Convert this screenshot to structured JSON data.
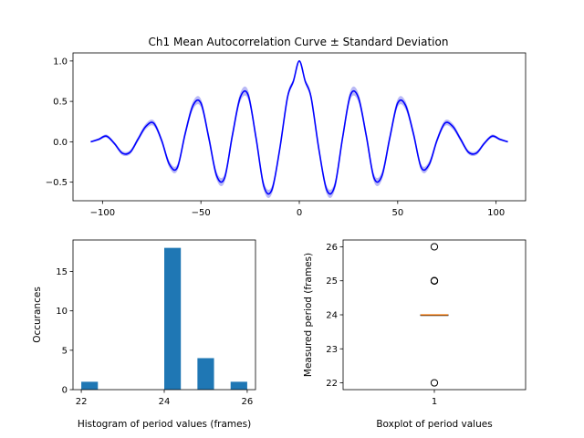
{
  "chart_data": [
    {
      "type": "line",
      "title": "Ch1 Mean Autocorrelation Curve ± Standard Deviation",
      "xlabel": "",
      "ylabel": "",
      "xlim": [
        -115,
        115
      ],
      "ylim": [
        -0.73,
        1.1
      ],
      "xticks": [
        -100,
        -50,
        0,
        50,
        100
      ],
      "yticks": [
        -0.5,
        0.0,
        0.5,
        1.0
      ],
      "xtick_labels": [
        "−100",
        "−50",
        "0",
        "50",
        "100"
      ],
      "ytick_labels": [
        "−0.5",
        "0.0",
        "0.5",
        "1.0"
      ],
      "line_color": "#0000ff",
      "band_color": "#b3b3f5",
      "series": [
        {
          "x": [
            -106,
            -102,
            -98,
            -94,
            -90,
            -86,
            -82,
            -78,
            -74,
            -70,
            -66,
            -62,
            -58,
            -54,
            -50,
            -46,
            -42,
            -38,
            -34,
            -30,
            -26,
            -22,
            -18,
            -14,
            -10,
            -6,
            -3,
            0,
            3,
            6,
            10,
            14,
            18,
            22,
            26,
            30,
            34,
            38,
            42,
            46,
            50,
            54,
            58,
            62,
            66,
            70,
            74,
            78,
            82,
            86,
            90,
            94,
            98,
            102,
            106
          ],
          "y": [
            0.0,
            0.03,
            0.07,
            -0.02,
            -0.14,
            -0.13,
            0.03,
            0.19,
            0.23,
            0.02,
            -0.28,
            -0.32,
            0.1,
            0.45,
            0.48,
            0.05,
            -0.42,
            -0.45,
            0.08,
            0.55,
            0.58,
            0.05,
            -0.55,
            -0.6,
            -0.1,
            0.55,
            0.75,
            1.0,
            0.75,
            0.55,
            -0.1,
            -0.6,
            -0.55,
            0.05,
            0.58,
            0.55,
            0.08,
            -0.45,
            -0.42,
            0.05,
            0.48,
            0.45,
            0.1,
            -0.32,
            -0.28,
            0.02,
            0.23,
            0.19,
            0.03,
            -0.13,
            -0.14,
            -0.02,
            0.07,
            0.03,
            0.0
          ],
          "std": [
            0.01,
            0.015,
            0.02,
            0.02,
            0.025,
            0.025,
            0.03,
            0.035,
            0.035,
            0.035,
            0.04,
            0.04,
            0.045,
            0.05,
            0.05,
            0.05,
            0.05,
            0.05,
            0.05,
            0.055,
            0.055,
            0.05,
            0.05,
            0.05,
            0.04,
            0.04,
            0.03,
            0.01,
            0.03,
            0.04,
            0.04,
            0.05,
            0.05,
            0.05,
            0.055,
            0.055,
            0.05,
            0.05,
            0.05,
            0.05,
            0.05,
            0.05,
            0.045,
            0.04,
            0.04,
            0.035,
            0.035,
            0.035,
            0.03,
            0.025,
            0.025,
            0.02,
            0.02,
            0.015,
            0.01
          ]
        }
      ]
    },
    {
      "type": "bar",
      "title": "",
      "xlabel": "Histogram of period values (frames)",
      "ylabel": "Occurances",
      "xlim": [
        21.8,
        26.2
      ],
      "ylim": [
        0,
        19
      ],
      "xticks": [
        22,
        24,
        26
      ],
      "yticks": [
        0,
        5,
        10,
        15
      ],
      "xtick_labels": [
        "22",
        "24",
        "26"
      ],
      "ytick_labels": [
        "0",
        "5",
        "10",
        "15"
      ],
      "bar_color": "#1f77b4",
      "bins": [
        {
          "x0": 22.0,
          "x1": 22.4,
          "value": 1
        },
        {
          "x0": 22.4,
          "x1": 22.8,
          "value": 0
        },
        {
          "x0": 22.8,
          "x1": 23.2,
          "value": 0
        },
        {
          "x0": 23.2,
          "x1": 23.6,
          "value": 0
        },
        {
          "x0": 23.6,
          "x1": 24.0,
          "value": 0
        },
        {
          "x0": 24.0,
          "x1": 24.4,
          "value": 18
        },
        {
          "x0": 24.4,
          "x1": 24.8,
          "value": 0
        },
        {
          "x0": 24.8,
          "x1": 25.2,
          "value": 4
        },
        {
          "x0": 25.2,
          "x1": 25.6,
          "value": 0
        },
        {
          "x0": 25.6,
          "x1": 26.0,
          "value": 1
        }
      ]
    },
    {
      "type": "box",
      "title": "",
      "xlabel": "Boxplot of period values",
      "ylabel": "Measured period (frames)",
      "xlim": [
        0.5,
        1.5
      ],
      "ylim": [
        21.8,
        26.2
      ],
      "xticks": [
        1
      ],
      "yticks": [
        22,
        23,
        24,
        25,
        26
      ],
      "xtick_labels": [
        "1"
      ],
      "ytick_labels": [
        "22",
        "23",
        "24",
        "25",
        "26"
      ],
      "median_color": "#ff7f0e",
      "box": {
        "position": 1,
        "q1": 24,
        "median": 24,
        "q3": 24,
        "whisker_low": 24,
        "whisker_high": 24
      },
      "outliers": [
        22,
        25,
        25,
        25,
        25,
        26
      ]
    }
  ]
}
